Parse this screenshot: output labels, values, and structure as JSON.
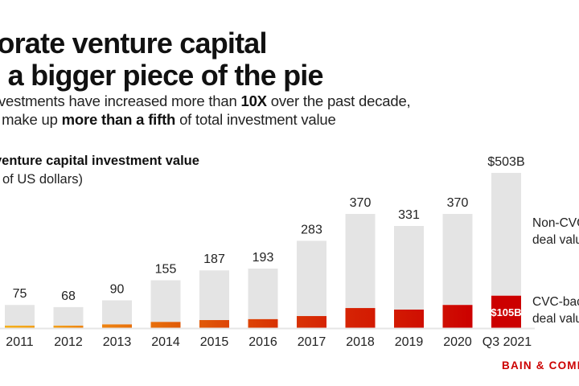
{
  "header": {
    "title_line1": "rporate venture capital",
    "title_line2": "es a bigger piece of the pie",
    "subtitle_line1_pre": "investments have increased more than ",
    "subtitle_line1_bold": "10X",
    "subtitle_line1_post": " over the past decade,",
    "subtitle_line2_pre": "w make up ",
    "subtitle_line2_bold": "more than a fifth",
    "subtitle_line2_post": " of total investment value"
  },
  "legend": {
    "non_cvc_line1": "Non-CVC",
    "non_cvc_line2": "deal value",
    "cvc_line1": "CVC-backed",
    "cvc_line2": "deal value"
  },
  "branding": {
    "logo": "BAIN & COMPANY"
  },
  "colors": {
    "non_cvc": "#e4e4e4",
    "cvc_gradient": [
      "#f5b01a",
      "#f2a01a",
      "#ee8410",
      "#e8700c",
      "#e05a08",
      "#dd4406",
      "#d83204",
      "#d62404",
      "#d31a02",
      "#cf0e02",
      "#cc0000"
    ],
    "brand": "#cc0000"
  },
  "chart_data": {
    "type": "bar",
    "stacked": true,
    "title": "Global venture capital investment value",
    "unit": "(Billions of US dollars)",
    "title_visible": "venture capital investment value",
    "unit_visible": "ns of US dollars)",
    "categories": [
      "2011",
      "2012",
      "2013",
      "2014",
      "2015",
      "2016",
      "2017",
      "2018",
      "2019",
      "2020",
      "Q3 2021"
    ],
    "totals": [
      75,
      68,
      90,
      155,
      187,
      193,
      283,
      370,
      331,
      370,
      503
    ],
    "total_labels": [
      "75",
      "68",
      "90",
      "155",
      "187",
      "193",
      "283",
      "370",
      "331",
      "370",
      "$503B"
    ],
    "series": [
      {
        "name": "CVC-backed deal value",
        "values": [
          8,
          8,
          12,
          20,
          26,
          29,
          39,
          65,
          60,
          75,
          105
        ]
      },
      {
        "name": "Non-CVC deal value",
        "values": [
          67,
          60,
          78,
          135,
          161,
          164,
          244,
          305,
          271,
          295,
          398
        ]
      }
    ],
    "inbar_labels": [
      "",
      "",
      "",
      "",
      "",
      "",
      "",
      "",
      "",
      "",
      "$105B"
    ],
    "ylim": [
      0,
      503
    ],
    "grid": false,
    "legend_position": "right"
  }
}
